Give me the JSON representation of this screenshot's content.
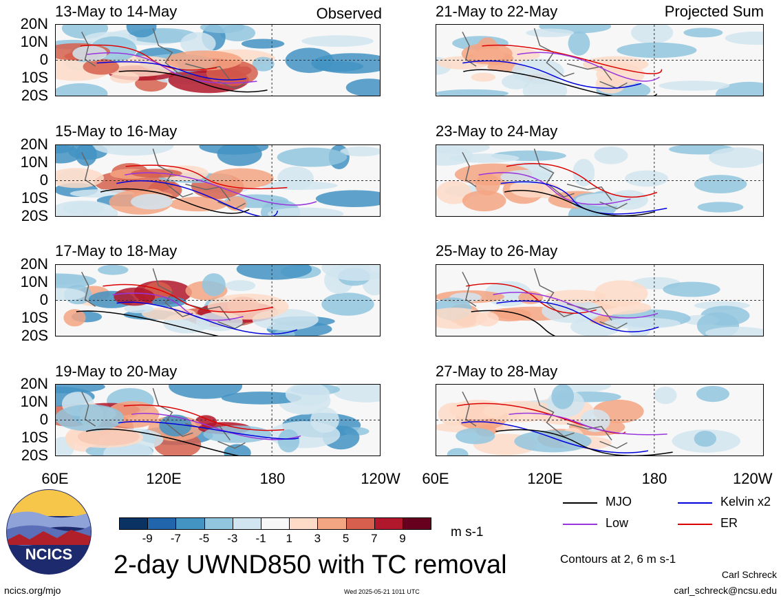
{
  "panels": [
    {
      "title": "13-May to 14-May",
      "label": "Observed"
    },
    {
      "title": "15-May to 16-May",
      "label": ""
    },
    {
      "title": "17-May to 18-May",
      "label": ""
    },
    {
      "title": "19-May to 20-May",
      "label": ""
    },
    {
      "title": "21-May to 22-May",
      "label": "Projected Sum"
    },
    {
      "title": "23-May to 24-May",
      "label": ""
    },
    {
      "title": "25-May to 26-May",
      "label": ""
    },
    {
      "title": "27-May to 28-May",
      "label": ""
    }
  ],
  "lat_labels": [
    "20N",
    "10N",
    "0",
    "10S",
    "20S"
  ],
  "lon_labels": [
    "60E",
    "120E",
    "180",
    "120W"
  ],
  "colorbar": {
    "labels": [
      "-9",
      "-7",
      "-5",
      "-3",
      "-1",
      "1",
      "3",
      "5",
      "7",
      "9"
    ],
    "colors": [
      "#0a3263",
      "#2166ac",
      "#4393c3",
      "#92c5de",
      "#d1e5f0",
      "#f7f7f7",
      "#fddbc7",
      "#f4a582",
      "#d6604d",
      "#b2182b",
      "#67001f"
    ],
    "units": "m s-1"
  },
  "legend": {
    "items": [
      {
        "label": "MJO",
        "color": "#000000"
      },
      {
        "label": "Kelvin x2",
        "color": "#0000dd"
      },
      {
        "label": "Low",
        "color": "#9933dd"
      },
      {
        "label": "ER",
        "color": "#dd0000"
      }
    ],
    "contours_note": "Contours at 2, 6 m s-1"
  },
  "main_title": "2-day UWND850 with TC removal",
  "logo_text": "NCICS",
  "footer": {
    "left": "ncics.org/mjo",
    "center": "Wed 2025-05-21 1011 UTC",
    "author": "Carl Schreck",
    "email": "carl_schreck@ncsu.edu"
  }
}
